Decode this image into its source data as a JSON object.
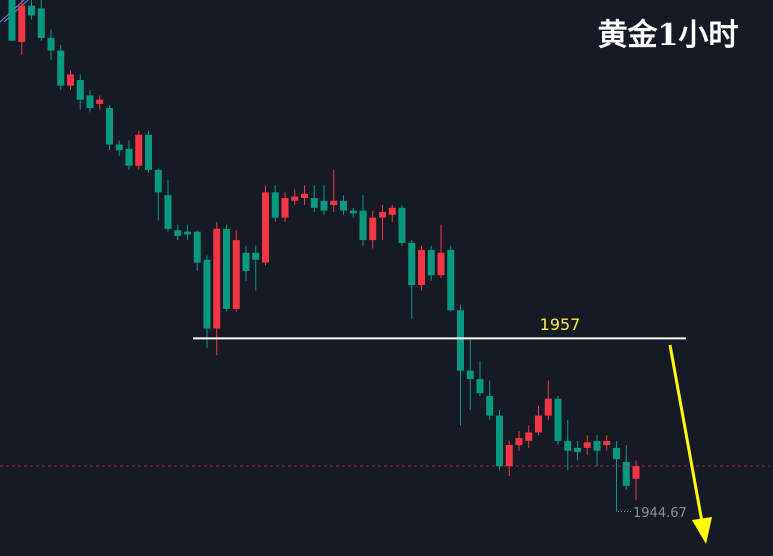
{
  "chart_data": {
    "type": "candlestick",
    "title": "黄金1小时",
    "ohlc": [
      [
        1981.1,
        1981.1,
        1978.2,
        1978.2
      ],
      [
        1978.1,
        1981.1,
        1977.2,
        1980.7
      ],
      [
        1980.7,
        1981.1,
        1979.7,
        1980.0
      ],
      [
        1980.5,
        1981.1,
        1978.2,
        1978.4
      ],
      [
        1978.4,
        1979.0,
        1976.8,
        1977.5
      ],
      [
        1977.5,
        1977.9,
        1974.7,
        1975.0
      ],
      [
        1975.0,
        1976.1,
        1974.7,
        1975.8
      ],
      [
        1975.4,
        1975.8,
        1973.3,
        1974.0
      ],
      [
        1974.3,
        1974.7,
        1973.1,
        1973.4
      ],
      [
        1973.7,
        1974.3,
        1973.3,
        1974.0
      ],
      [
        1973.4,
        1973.6,
        1970.4,
        1970.8
      ],
      [
        1970.8,
        1971.1,
        1970.0,
        1970.4
      ],
      [
        1970.5,
        1971.1,
        1969.0,
        1969.3
      ],
      [
        1969.3,
        1971.8,
        1969.0,
        1971.5
      ],
      [
        1971.5,
        1971.8,
        1968.8,
        1969.0
      ],
      [
        1969.0,
        1969.1,
        1965.4,
        1967.4
      ],
      [
        1967.2,
        1968.3,
        1964.6,
        1964.8
      ],
      [
        1964.7,
        1965.1,
        1964.0,
        1964.3
      ],
      [
        1964.6,
        1965.1,
        1964.0,
        1964.4
      ],
      [
        1964.6,
        1964.7,
        1961.8,
        1962.4
      ],
      [
        1962.6,
        1962.9,
        1956.3,
        1957.7
      ],
      [
        1957.7,
        1965.3,
        1955.8,
        1964.8
      ],
      [
        1964.8,
        1965.1,
        1958.9,
        1959.1
      ],
      [
        1959.1,
        1964.7,
        1958.9,
        1964.0
      ],
      [
        1963.1,
        1963.6,
        1961.1,
        1961.8
      ],
      [
        1963.1,
        1963.6,
        1960.4,
        1962.6
      ],
      [
        1962.4,
        1967.9,
        1962.2,
        1967.4
      ],
      [
        1967.4,
        1967.9,
        1965.3,
        1965.6
      ],
      [
        1965.6,
        1967.4,
        1965.3,
        1967.0
      ],
      [
        1966.8,
        1967.6,
        1966.5,
        1967.1
      ],
      [
        1967.0,
        1967.9,
        1966.5,
        1967.3
      ],
      [
        1967.0,
        1967.9,
        1966.0,
        1966.3
      ],
      [
        1966.8,
        1967.9,
        1965.8,
        1966.1
      ],
      [
        1966.5,
        1969.0,
        1966.0,
        1966.8
      ],
      [
        1966.8,
        1967.2,
        1965.8,
        1966.1
      ],
      [
        1966.1,
        1966.3,
        1965.6,
        1965.9
      ],
      [
        1966.1,
        1967.2,
        1963.6,
        1964.0
      ],
      [
        1964.0,
        1966.1,
        1963.4,
        1965.6
      ],
      [
        1965.6,
        1966.5,
        1964.0,
        1966.0
      ],
      [
        1965.8,
        1966.5,
        1965.3,
        1966.3
      ],
      [
        1966.3,
        1966.5,
        1963.6,
        1963.8
      ],
      [
        1963.8,
        1964.0,
        1958.4,
        1960.8
      ],
      [
        1960.8,
        1963.6,
        1960.4,
        1963.3
      ],
      [
        1963.3,
        1963.6,
        1961.1,
        1961.5
      ],
      [
        1961.5,
        1965.1,
        1961.3,
        1963.1
      ],
      [
        1963.3,
        1963.6,
        1958.9,
        1959.0
      ],
      [
        1959.0,
        1959.4,
        1950.8,
        1954.7
      ],
      [
        1954.7,
        1956.9,
        1951.9,
        1954.1
      ],
      [
        1954.1,
        1955.4,
        1952.9,
        1953.1
      ],
      [
        1952.9,
        1954.0,
        1951.2,
        1951.5
      ],
      [
        1951.5,
        1951.9,
        1947.6,
        1947.9
      ],
      [
        1947.9,
        1949.7,
        1947.2,
        1949.4
      ],
      [
        1949.4,
        1950.4,
        1949.0,
        1949.9
      ],
      [
        1949.7,
        1950.8,
        1949.2,
        1950.3
      ],
      [
        1950.3,
        1952.2,
        1950.1,
        1951.5
      ],
      [
        1951.5,
        1954.0,
        1951.2,
        1952.7
      ],
      [
        1952.7,
        1952.9,
        1949.4,
        1949.7
      ],
      [
        1949.7,
        1951.2,
        1947.6,
        1949.0
      ],
      [
        1949.2,
        1949.7,
        1948.3,
        1948.9
      ],
      [
        1949.2,
        1950.1,
        1948.7,
        1949.6
      ],
      [
        1949.7,
        1950.1,
        1947.9,
        1949.0
      ],
      [
        1949.4,
        1950.1,
        1949.0,
        1949.7
      ],
      [
        1949.2,
        1949.7,
        1944.67,
        1948.4
      ],
      [
        1948.2,
        1949.4,
        1946.2,
        1946.5
      ],
      [
        1947.0,
        1948.3,
        1945.5,
        1947.9
      ]
    ],
    "up_color": "#f23645",
    "down_color": "#089981",
    "ylim": [
      1941.5,
      1981.1
    ],
    "level": 1957,
    "level_color": "#ffffff",
    "level_label_color": "#ffeb3b",
    "price_label": 1944.67
  }
}
